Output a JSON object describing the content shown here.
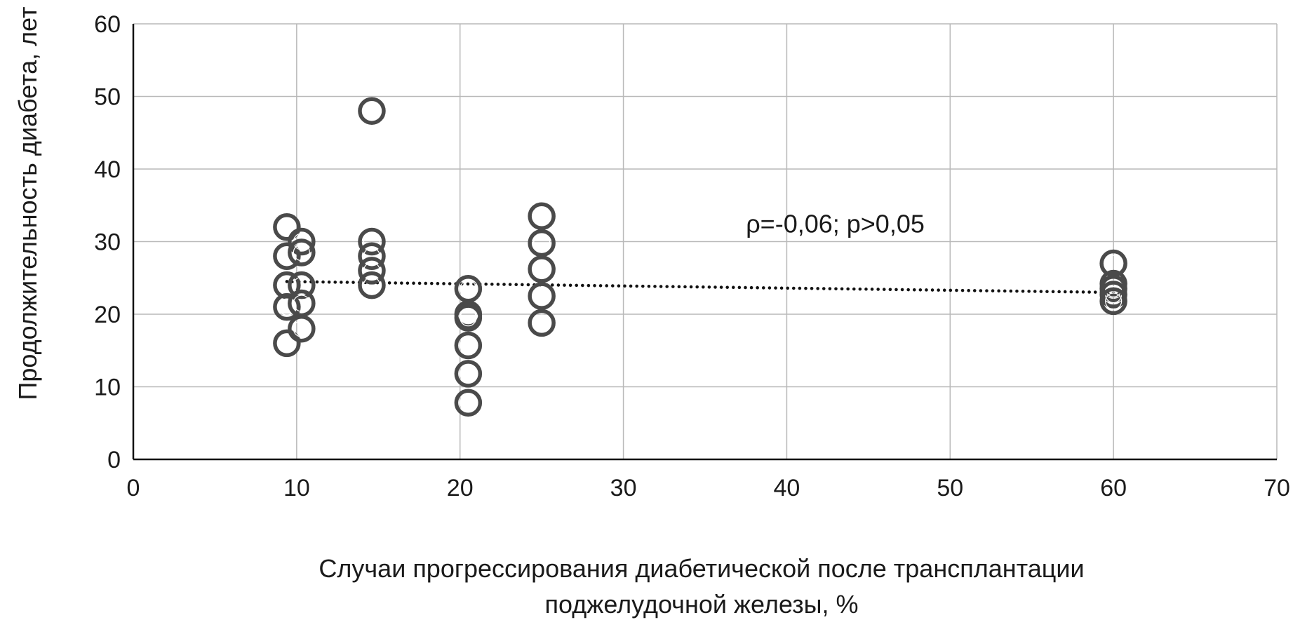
{
  "chart_data": {
    "type": "scatter",
    "xlabel_lines": [
      "Случаи прогрессирования диабетической после трансплантации",
      "поджелудочной железы, %"
    ],
    "ylabel": "Продолжительность диабета, лет",
    "xlim": [
      0,
      70
    ],
    "ylim": [
      0,
      60
    ],
    "xticks": [
      0,
      10,
      20,
      30,
      40,
      50,
      60,
      70
    ],
    "yticks": [
      0,
      10,
      20,
      30,
      40,
      50,
      60
    ],
    "grid": true,
    "marker": "hollow-circle",
    "marker_color": "#4a4a4a",
    "trendline_color": "#111111",
    "annotation": {
      "text": "ρ=-0,06; p>0,05",
      "x": 37.5,
      "y": 32.5
    },
    "trendline": {
      "style": "dotted",
      "x": [
        9.4,
        60
      ],
      "y": [
        24.5,
        23.0
      ]
    },
    "series": [
      {
        "points": [
          {
            "x": 9.4,
            "y": 32
          },
          {
            "x": 9.4,
            "y": 28
          },
          {
            "x": 9.4,
            "y": 24
          },
          {
            "x": 9.4,
            "y": 21
          },
          {
            "x": 9.4,
            "y": 16
          },
          {
            "x": 10.3,
            "y": 30
          },
          {
            "x": 10.3,
            "y": 28.5
          },
          {
            "x": 10.3,
            "y": 24
          },
          {
            "x": 10.3,
            "y": 21.5
          },
          {
            "x": 10.3,
            "y": 18
          },
          {
            "x": 14.6,
            "y": 48
          },
          {
            "x": 14.6,
            "y": 30
          },
          {
            "x": 14.6,
            "y": 28
          },
          {
            "x": 14.6,
            "y": 26
          },
          {
            "x": 14.6,
            "y": 24
          },
          {
            "x": 20.5,
            "y": 23.5
          },
          {
            "x": 20.5,
            "y": 20
          },
          {
            "x": 20.5,
            "y": 19.5
          },
          {
            "x": 20.5,
            "y": 15.7
          },
          {
            "x": 20.5,
            "y": 11.8
          },
          {
            "x": 20.5,
            "y": 7.8
          },
          {
            "x": 25,
            "y": 33.5
          },
          {
            "x": 25,
            "y": 29.8
          },
          {
            "x": 25,
            "y": 26.2
          },
          {
            "x": 25,
            "y": 22.5
          },
          {
            "x": 25,
            "y": 18.8
          },
          {
            "x": 60,
            "y": 27
          },
          {
            "x": 60,
            "y": 24.2
          },
          {
            "x": 60,
            "y": 23.5
          },
          {
            "x": 60,
            "y": 22.7
          },
          {
            "x": 60,
            "y": 21.8
          }
        ]
      }
    ]
  }
}
